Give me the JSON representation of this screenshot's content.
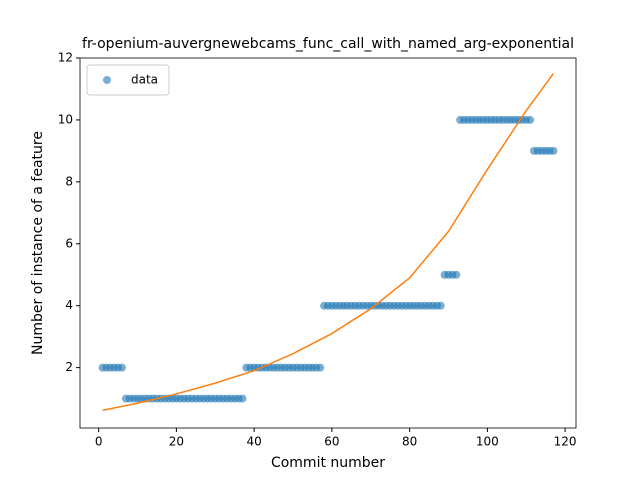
{
  "chart_data": {
    "type": "scatter",
    "title": "fr-openium-auvergnewebcams_func_call_with_named_arg-exponential",
    "xlabel": "Commit number",
    "ylabel": "Number of instance of a feature",
    "xlim": [
      -4.8,
      122.8
    ],
    "ylim": [
      0.05,
      12
    ],
    "xticks": [
      0,
      20,
      40,
      60,
      80,
      100,
      120
    ],
    "yticks": [
      2,
      4,
      6,
      8,
      10,
      12
    ],
    "legend": "upper left",
    "series": [
      {
        "name": "data",
        "color": "#1f77b4",
        "style": "marker",
        "x": [
          1,
          2,
          3,
          4,
          5,
          6,
          7,
          8,
          9,
          10,
          11,
          12,
          13,
          14,
          15,
          16,
          17,
          18,
          19,
          20,
          21,
          22,
          23,
          24,
          25,
          26,
          27,
          28,
          29,
          30,
          31,
          32,
          33,
          34,
          35,
          36,
          37,
          38,
          39,
          40,
          41,
          42,
          43,
          44,
          45,
          46,
          47,
          48,
          49,
          50,
          51,
          52,
          53,
          54,
          55,
          56,
          57,
          58,
          59,
          60,
          61,
          62,
          63,
          64,
          65,
          66,
          67,
          68,
          69,
          70,
          71,
          72,
          73,
          74,
          75,
          76,
          77,
          78,
          79,
          80,
          81,
          82,
          83,
          84,
          85,
          86,
          87,
          88,
          89,
          90,
          91,
          92,
          93,
          94,
          95,
          96,
          97,
          98,
          99,
          100,
          101,
          102,
          103,
          104,
          105,
          106,
          107,
          108,
          109,
          110,
          111,
          112,
          113,
          114,
          115,
          116,
          117
        ],
        "values": [
          2,
          2,
          2,
          2,
          2,
          2,
          1,
          1,
          1,
          1,
          1,
          1,
          1,
          1,
          1,
          1,
          1,
          1,
          1,
          1,
          1,
          1,
          1,
          1,
          1,
          1,
          1,
          1,
          1,
          1,
          1,
          1,
          1,
          1,
          1,
          1,
          1,
          2,
          2,
          2,
          2,
          2,
          2,
          2,
          2,
          2,
          2,
          2,
          2,
          2,
          2,
          2,
          2,
          2,
          2,
          2,
          2,
          4,
          4,
          4,
          4,
          4,
          4,
          4,
          4,
          4,
          4,
          4,
          4,
          4,
          4,
          4,
          4,
          4,
          4,
          4,
          4,
          4,
          4,
          4,
          4,
          4,
          4,
          4,
          4,
          4,
          4,
          4,
          5,
          5,
          5,
          5,
          10,
          10,
          10,
          10,
          10,
          10,
          10,
          10,
          10,
          10,
          10,
          10,
          10,
          10,
          10,
          10,
          10,
          10,
          10,
          9,
          9,
          9,
          9,
          9,
          9
        ]
      },
      {
        "color": "#ff7f0e",
        "style": "line",
        "x": [
          1,
          10,
          20,
          30,
          40,
          50,
          60,
          70,
          80,
          90,
          100,
          110,
          117
        ],
        "values": [
          0.62,
          0.85,
          1.15,
          1.5,
          1.9,
          2.45,
          3.1,
          3.9,
          4.9,
          6.4,
          8.4,
          10.3,
          11.5
        ]
      }
    ]
  }
}
